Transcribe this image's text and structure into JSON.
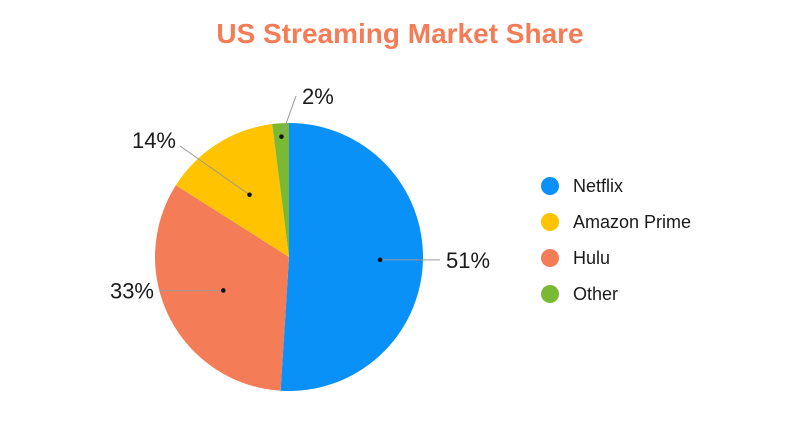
{
  "chart_data": {
    "type": "pie",
    "title": "US Streaming Market Share",
    "title_color": "#F47C57",
    "slices": [
      {
        "label": "Netflix",
        "value": 51,
        "value_label": "51%",
        "color": "#0A91F7"
      },
      {
        "label": "Hulu",
        "value": 33,
        "value_label": "33%",
        "color": "#F47C57"
      },
      {
        "label": "Amazon Prime",
        "value": 14,
        "value_label": "14%",
        "color": "#FFC300"
      },
      {
        "label": "Other",
        "value": 2,
        "value_label": "2%",
        "color": "#7AB934"
      }
    ],
    "legend_order": [
      "Netflix",
      "Amazon Prime",
      "Hulu",
      "Other"
    ],
    "legend_position": "right"
  }
}
